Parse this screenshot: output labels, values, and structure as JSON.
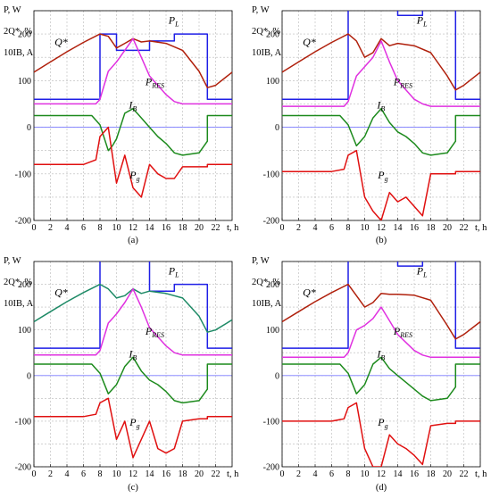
{
  "panels": [
    {
      "caption": "(a)",
      "ylabels": [
        "P, W",
        "2Q*, %",
        "10IB, A"
      ],
      "xlabel": "t, h",
      "labels": {
        "PL": {
          "base": "P",
          "sub": "L"
        },
        "Q": {
          "base": "Q*",
          "sub": ""
        },
        "PRES": {
          "base": "P",
          "sub": "RES"
        },
        "IB": {
          "base": "I",
          "sub": "B"
        },
        "Pg": {
          "base": "P",
          "sub": "g"
        }
      }
    },
    {
      "caption": "(b)",
      "ylabels": [
        "P, W",
        "2Q*, %",
        "10IB, A"
      ],
      "xlabel": "t, h",
      "labels": {
        "PL": {
          "base": "P",
          "sub": "L"
        },
        "Q": {
          "base": "Q*",
          "sub": ""
        },
        "PRES": {
          "base": "P",
          "sub": "RES"
        },
        "IB": {
          "base": "I",
          "sub": "B"
        },
        "Pg": {
          "base": "P",
          "sub": "g"
        }
      }
    },
    {
      "caption": "(c)",
      "ylabels": [
        "P, W",
        "2Q*, %",
        "10IB, A"
      ],
      "xlabel": "t, h",
      "labels": {
        "PL": {
          "base": "P",
          "sub": "L"
        },
        "Q": {
          "base": "Q*",
          "sub": ""
        },
        "PRES": {
          "base": "P",
          "sub": "RES"
        },
        "IB": {
          "base": "I",
          "sub": "B"
        },
        "Pg": {
          "base": "P",
          "sub": "g"
        }
      }
    },
    {
      "caption": "(d)",
      "ylabels": [
        "P, W",
        "2Q*, %",
        "10IB, A"
      ],
      "xlabel": "t, h",
      "labels": {
        "PL": {
          "base": "P",
          "sub": "L"
        },
        "Q": {
          "base": "Q*",
          "sub": ""
        },
        "PRES": {
          "base": "P",
          "sub": "RES"
        },
        "IB": {
          "base": "I",
          "sub": "B"
        },
        "Pg": {
          "base": "P",
          "sub": "g"
        }
      }
    }
  ],
  "colors": {
    "PL": "#1f1fe6",
    "Q": "#b0200c",
    "Q_c": "#1e8a66",
    "PRES": "#e030e0",
    "IB": "#1c8a1c",
    "Pg": "#e01010",
    "zero": "#7a7aff",
    "grid": "#b8b8b8"
  },
  "chart_data": [
    {
      "type": "line",
      "title": "(a)",
      "xlabel": "t, h",
      "ylabel": "P, W / 2Q*, % / 10IB, A",
      "xlim": [
        0,
        24
      ],
      "ylim": [
        -200,
        250
      ],
      "xticks": [
        0,
        2,
        4,
        6,
        8,
        10,
        12,
        14,
        16,
        18,
        20,
        22,
        24
      ],
      "yticks": [
        -200,
        -100,
        0,
        100,
        200
      ],
      "grid": true,
      "series": [
        {
          "name": "PL",
          "x": [
            0,
            8,
            8,
            10,
            10,
            14,
            14,
            17,
            17,
            21,
            21,
            24
          ],
          "y": [
            60,
            60,
            200,
            200,
            165,
            165,
            185,
            185,
            200,
            200,
            60,
            60
          ]
        },
        {
          "name": "Q*",
          "x": [
            0,
            2,
            4,
            6,
            8,
            9,
            10,
            11,
            12,
            13,
            14,
            16,
            18,
            20,
            21,
            22,
            24
          ],
          "y": [
            118,
            140,
            162,
            182,
            200,
            195,
            170,
            180,
            190,
            183,
            185,
            180,
            165,
            120,
            85,
            90,
            118
          ]
        },
        {
          "name": "PRES",
          "x": [
            0,
            7.5,
            8,
            9,
            10,
            11,
            12,
            13,
            14,
            16,
            17,
            18,
            24
          ],
          "y": [
            50,
            50,
            60,
            120,
            140,
            165,
            190,
            150,
            110,
            70,
            55,
            50,
            50
          ]
        },
        {
          "name": "IB",
          "x": [
            0,
            7,
            8,
            9,
            9.5,
            10,
            11,
            12,
            13,
            14,
            15,
            16,
            17,
            18,
            20,
            21,
            21,
            24
          ],
          "y": [
            25,
            25,
            5,
            -50,
            -40,
            -25,
            30,
            40,
            20,
            0,
            -20,
            -35,
            -55,
            -60,
            -55,
            -30,
            25,
            25
          ]
        },
        {
          "name": "Pg",
          "x": [
            0,
            6,
            7.5,
            8,
            9,
            10,
            11,
            12,
            13,
            14,
            15,
            16,
            17,
            18,
            20,
            21,
            21,
            24
          ],
          "y": [
            -80,
            -80,
            -70,
            -20,
            0,
            -120,
            -60,
            -130,
            -150,
            -80,
            -100,
            -110,
            -110,
            -85,
            -85,
            -85,
            -80,
            -80
          ]
        }
      ]
    },
    {
      "type": "line",
      "title": "(b)",
      "xlabel": "t, h",
      "ylabel": "P, W / 2Q*, % / 10IB, A",
      "xlim": [
        0,
        24
      ],
      "ylim": [
        -200,
        250
      ],
      "xticks": [
        0,
        2,
        4,
        6,
        8,
        10,
        12,
        14,
        16,
        18,
        20,
        22,
        24
      ],
      "yticks": [
        -200,
        -100,
        0,
        100,
        200
      ],
      "grid": true,
      "series": [
        {
          "name": "PL",
          "x": [
            0,
            8,
            8,
            10,
            10,
            14,
            14,
            17,
            17,
            21,
            21,
            24
          ],
          "y": [
            60,
            60,
            300,
            300,
            265,
            265,
            240,
            240,
            300,
            300,
            60,
            60
          ]
        },
        {
          "name": "Q*",
          "x": [
            0,
            2,
            4,
            6,
            8,
            9,
            10,
            11,
            12,
            13,
            14,
            16,
            18,
            20,
            21,
            22,
            24
          ],
          "y": [
            118,
            140,
            162,
            182,
            200,
            185,
            150,
            160,
            190,
            175,
            180,
            175,
            160,
            110,
            80,
            90,
            118
          ]
        },
        {
          "name": "PRES",
          "x": [
            0,
            7.5,
            8,
            9,
            10,
            11,
            12,
            13,
            14,
            16,
            17,
            18,
            24
          ],
          "y": [
            45,
            45,
            55,
            110,
            130,
            150,
            185,
            140,
            100,
            60,
            50,
            45,
            45
          ]
        },
        {
          "name": "IB",
          "x": [
            0,
            7,
            8,
            9,
            9.5,
            10,
            11,
            12,
            13,
            14,
            15,
            16,
            17,
            18,
            20,
            21,
            21,
            24
          ],
          "y": [
            25,
            25,
            5,
            -40,
            -30,
            -20,
            20,
            40,
            10,
            -10,
            -20,
            -35,
            -55,
            -60,
            -55,
            -30,
            25,
            25
          ]
        },
        {
          "name": "Pg",
          "x": [
            0,
            6,
            7.5,
            8,
            9,
            10,
            11,
            12,
            13,
            14,
            15,
            16,
            17,
            18,
            20,
            21,
            21,
            24
          ],
          "y": [
            -95,
            -95,
            -90,
            -60,
            -50,
            -150,
            -180,
            -200,
            -140,
            -160,
            -150,
            -170,
            -190,
            -100,
            -100,
            -100,
            -95,
            -95
          ]
        }
      ]
    },
    {
      "type": "line",
      "title": "(c)",
      "xlabel": "t, h",
      "ylabel": "P, W / 2Q*, % / 10IB, A",
      "xlim": [
        0,
        24
      ],
      "ylim": [
        -200,
        250
      ],
      "xticks": [
        0,
        2,
        4,
        6,
        8,
        10,
        12,
        14,
        16,
        18,
        20,
        22,
        24
      ],
      "yticks": [
        -200,
        -100,
        0,
        100,
        200
      ],
      "grid": true,
      "series": [
        {
          "name": "PL",
          "x": [
            0,
            8,
            8,
            10,
            10,
            14,
            14,
            17,
            17,
            21,
            21,
            24
          ],
          "y": [
            60,
            60,
            300,
            300,
            265,
            265,
            185,
            185,
            200,
            200,
            60,
            60
          ]
        },
        {
          "name": "Q*",
          "x": [
            0,
            2,
            4,
            6,
            8,
            9,
            10,
            11,
            12,
            13,
            14,
            16,
            18,
            20,
            21,
            22,
            24
          ],
          "y": [
            118,
            140,
            162,
            182,
            200,
            190,
            170,
            175,
            190,
            180,
            185,
            180,
            170,
            130,
            95,
            100,
            122
          ]
        },
        {
          "name": "PRES",
          "x": [
            0,
            7.5,
            8,
            9,
            10,
            11,
            12,
            13,
            14,
            16,
            17,
            18,
            24
          ],
          "y": [
            45,
            45,
            55,
            115,
            135,
            160,
            190,
            150,
            105,
            65,
            50,
            45,
            45
          ]
        },
        {
          "name": "IB",
          "x": [
            0,
            7,
            8,
            9,
            9.5,
            10,
            11,
            12,
            13,
            14,
            15,
            16,
            17,
            18,
            20,
            21,
            21,
            24
          ],
          "y": [
            25,
            25,
            5,
            -40,
            -30,
            -20,
            20,
            40,
            10,
            -10,
            -20,
            -35,
            -55,
            -60,
            -55,
            -30,
            25,
            25
          ]
        },
        {
          "name": "Pg",
          "x": [
            0,
            6,
            7.5,
            8,
            9,
            10,
            11,
            12,
            13,
            14,
            15,
            16,
            17,
            18,
            20,
            21,
            21,
            24
          ],
          "y": [
            -90,
            -90,
            -85,
            -60,
            -50,
            -140,
            -100,
            -180,
            -140,
            -100,
            -160,
            -170,
            -160,
            -100,
            -95,
            -95,
            -90,
            -90
          ]
        }
      ]
    },
    {
      "type": "line",
      "title": "(d)",
      "xlabel": "t, h",
      "ylabel": "P, W / 2Q*, % / 10IB, A",
      "xlim": [
        0,
        24
      ],
      "ylim": [
        -200,
        250
      ],
      "xticks": [
        0,
        2,
        4,
        6,
        8,
        10,
        12,
        14,
        16,
        18,
        20,
        22,
        24
      ],
      "yticks": [
        -200,
        -100,
        0,
        100,
        200
      ],
      "grid": true,
      "series": [
        {
          "name": "PL",
          "x": [
            0,
            8,
            8,
            10,
            10,
            14,
            14,
            17,
            17,
            21,
            21,
            24
          ],
          "y": [
            60,
            60,
            300,
            300,
            265,
            265,
            240,
            240,
            300,
            300,
            60,
            60
          ]
        },
        {
          "name": "Q*",
          "x": [
            0,
            2,
            4,
            6,
            8,
            9,
            10,
            11,
            12,
            13,
            14,
            16,
            18,
            20,
            21,
            22,
            24
          ],
          "y": [
            118,
            140,
            162,
            182,
            200,
            175,
            150,
            160,
            180,
            178,
            178,
            176,
            165,
            110,
            80,
            90,
            118
          ]
        },
        {
          "name": "PRES",
          "x": [
            0,
            7.5,
            8,
            9,
            10,
            11,
            12,
            13,
            14,
            16,
            17,
            18,
            24
          ],
          "y": [
            40,
            40,
            50,
            100,
            110,
            125,
            150,
            120,
            90,
            55,
            45,
            40,
            40
          ]
        },
        {
          "name": "IB",
          "x": [
            0,
            7,
            8,
            9,
            9.5,
            10,
            11,
            12,
            13,
            14,
            15,
            16,
            17,
            18,
            20,
            21,
            21,
            24
          ],
          "y": [
            25,
            25,
            5,
            -40,
            -30,
            -20,
            25,
            40,
            15,
            0,
            -15,
            -30,
            -45,
            -55,
            -50,
            -25,
            25,
            25
          ]
        },
        {
          "name": "Pg",
          "x": [
            0,
            6,
            7.5,
            8,
            9,
            10,
            11,
            12,
            13,
            14,
            15,
            16,
            17,
            18,
            20,
            21,
            21,
            24
          ],
          "y": [
            -100,
            -100,
            -95,
            -70,
            -60,
            -160,
            -200,
            -200,
            -130,
            -150,
            -160,
            -175,
            -195,
            -110,
            -105,
            -105,
            -100,
            -100
          ]
        }
      ]
    }
  ]
}
